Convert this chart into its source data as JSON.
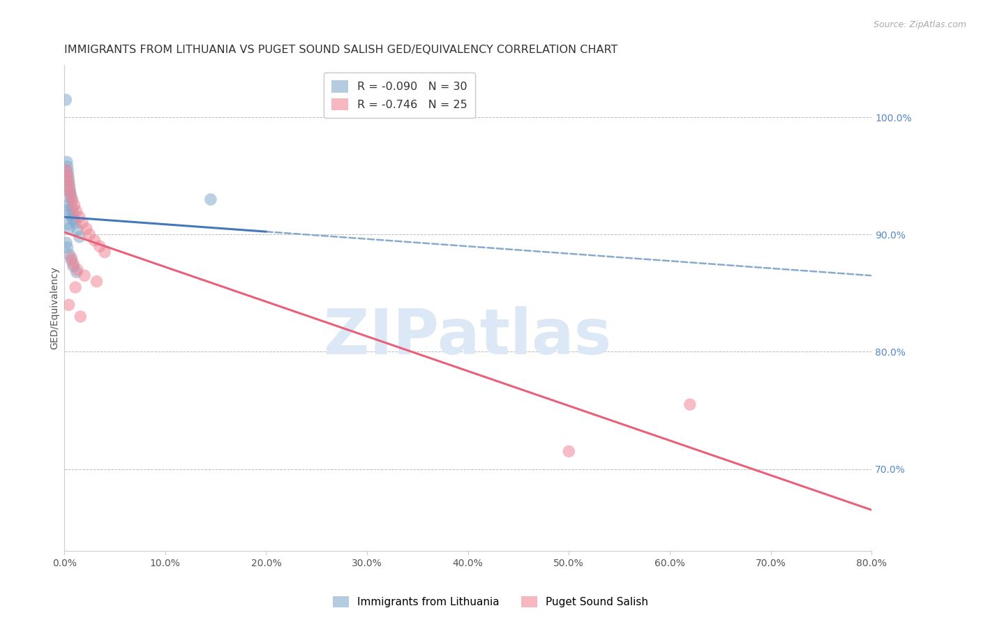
{
  "title": "IMMIGRANTS FROM LITHUANIA VS PUGET SOUND SALISH GED/EQUIVALENCY CORRELATION CHART",
  "source": "Source: ZipAtlas.com",
  "ylabel": "GED/Equivalency",
  "right_yticks": [
    70.0,
    80.0,
    90.0,
    100.0
  ],
  "xlim_min": 0.0,
  "xlim_max": 80.0,
  "ylim_min": 63.0,
  "ylim_max": 104.5,
  "legend_blue_r": "R = -0.090",
  "legend_blue_n": "N = 30",
  "legend_pink_r": "R = -0.746",
  "legend_pink_n": "N = 25",
  "blue_color": "#85aacc",
  "blue_line_solid_color": "#4477bb",
  "blue_line_dash_color": "#88aacc",
  "pink_color": "#f08898",
  "pink_line_color": "#e8607a",
  "blue_line_y0": 91.5,
  "blue_line_y1": 86.5,
  "blue_solid_x_end": 20.0,
  "pink_line_y0": 90.2,
  "pink_line_y1": 66.5,
  "blue_scatter_x": [
    0.15,
    0.25,
    0.3,
    0.35,
    0.4,
    0.45,
    0.5,
    0.55,
    0.6,
    0.65,
    0.7,
    0.8,
    0.9,
    1.0,
    1.1,
    1.3,
    1.5,
    0.2,
    0.3,
    0.5,
    0.7,
    0.9,
    1.2,
    14.5,
    0.25,
    0.4,
    0.6,
    0.8,
    0.35,
    0.45
  ],
  "blue_scatter_y": [
    101.5,
    96.2,
    95.8,
    95.4,
    95.0,
    94.6,
    94.2,
    93.8,
    93.5,
    93.2,
    92.9,
    92.3,
    91.8,
    91.3,
    91.0,
    90.4,
    89.8,
    89.3,
    88.9,
    88.3,
    87.8,
    87.3,
    86.8,
    93.0,
    92.5,
    92.1,
    91.7,
    91.3,
    90.9,
    90.5
  ],
  "pink_scatter_x": [
    0.2,
    0.3,
    0.4,
    0.5,
    0.6,
    0.8,
    1.0,
    1.2,
    1.5,
    1.8,
    2.2,
    2.5,
    3.0,
    3.5,
    4.0,
    0.7,
    0.9,
    1.3,
    2.0,
    3.2,
    1.1,
    50.0,
    62.0,
    1.6,
    0.45
  ],
  "pink_scatter_y": [
    95.5,
    95.0,
    94.5,
    94.0,
    93.5,
    93.0,
    92.5,
    92.0,
    91.5,
    91.0,
    90.5,
    90.0,
    89.5,
    89.0,
    88.5,
    88.0,
    87.5,
    87.0,
    86.5,
    86.0,
    85.5,
    71.5,
    75.5,
    83.0,
    84.0
  ],
  "background_color": "#ffffff",
  "grid_color": "#bbbbbb",
  "title_fontsize": 11.5,
  "axis_label_fontsize": 10,
  "tick_fontsize": 10,
  "right_tick_color": "#5588cc",
  "watermark_text": "ZIPatlas",
  "watermark_color": "#dce8f5",
  "watermark_fontsize": 65
}
